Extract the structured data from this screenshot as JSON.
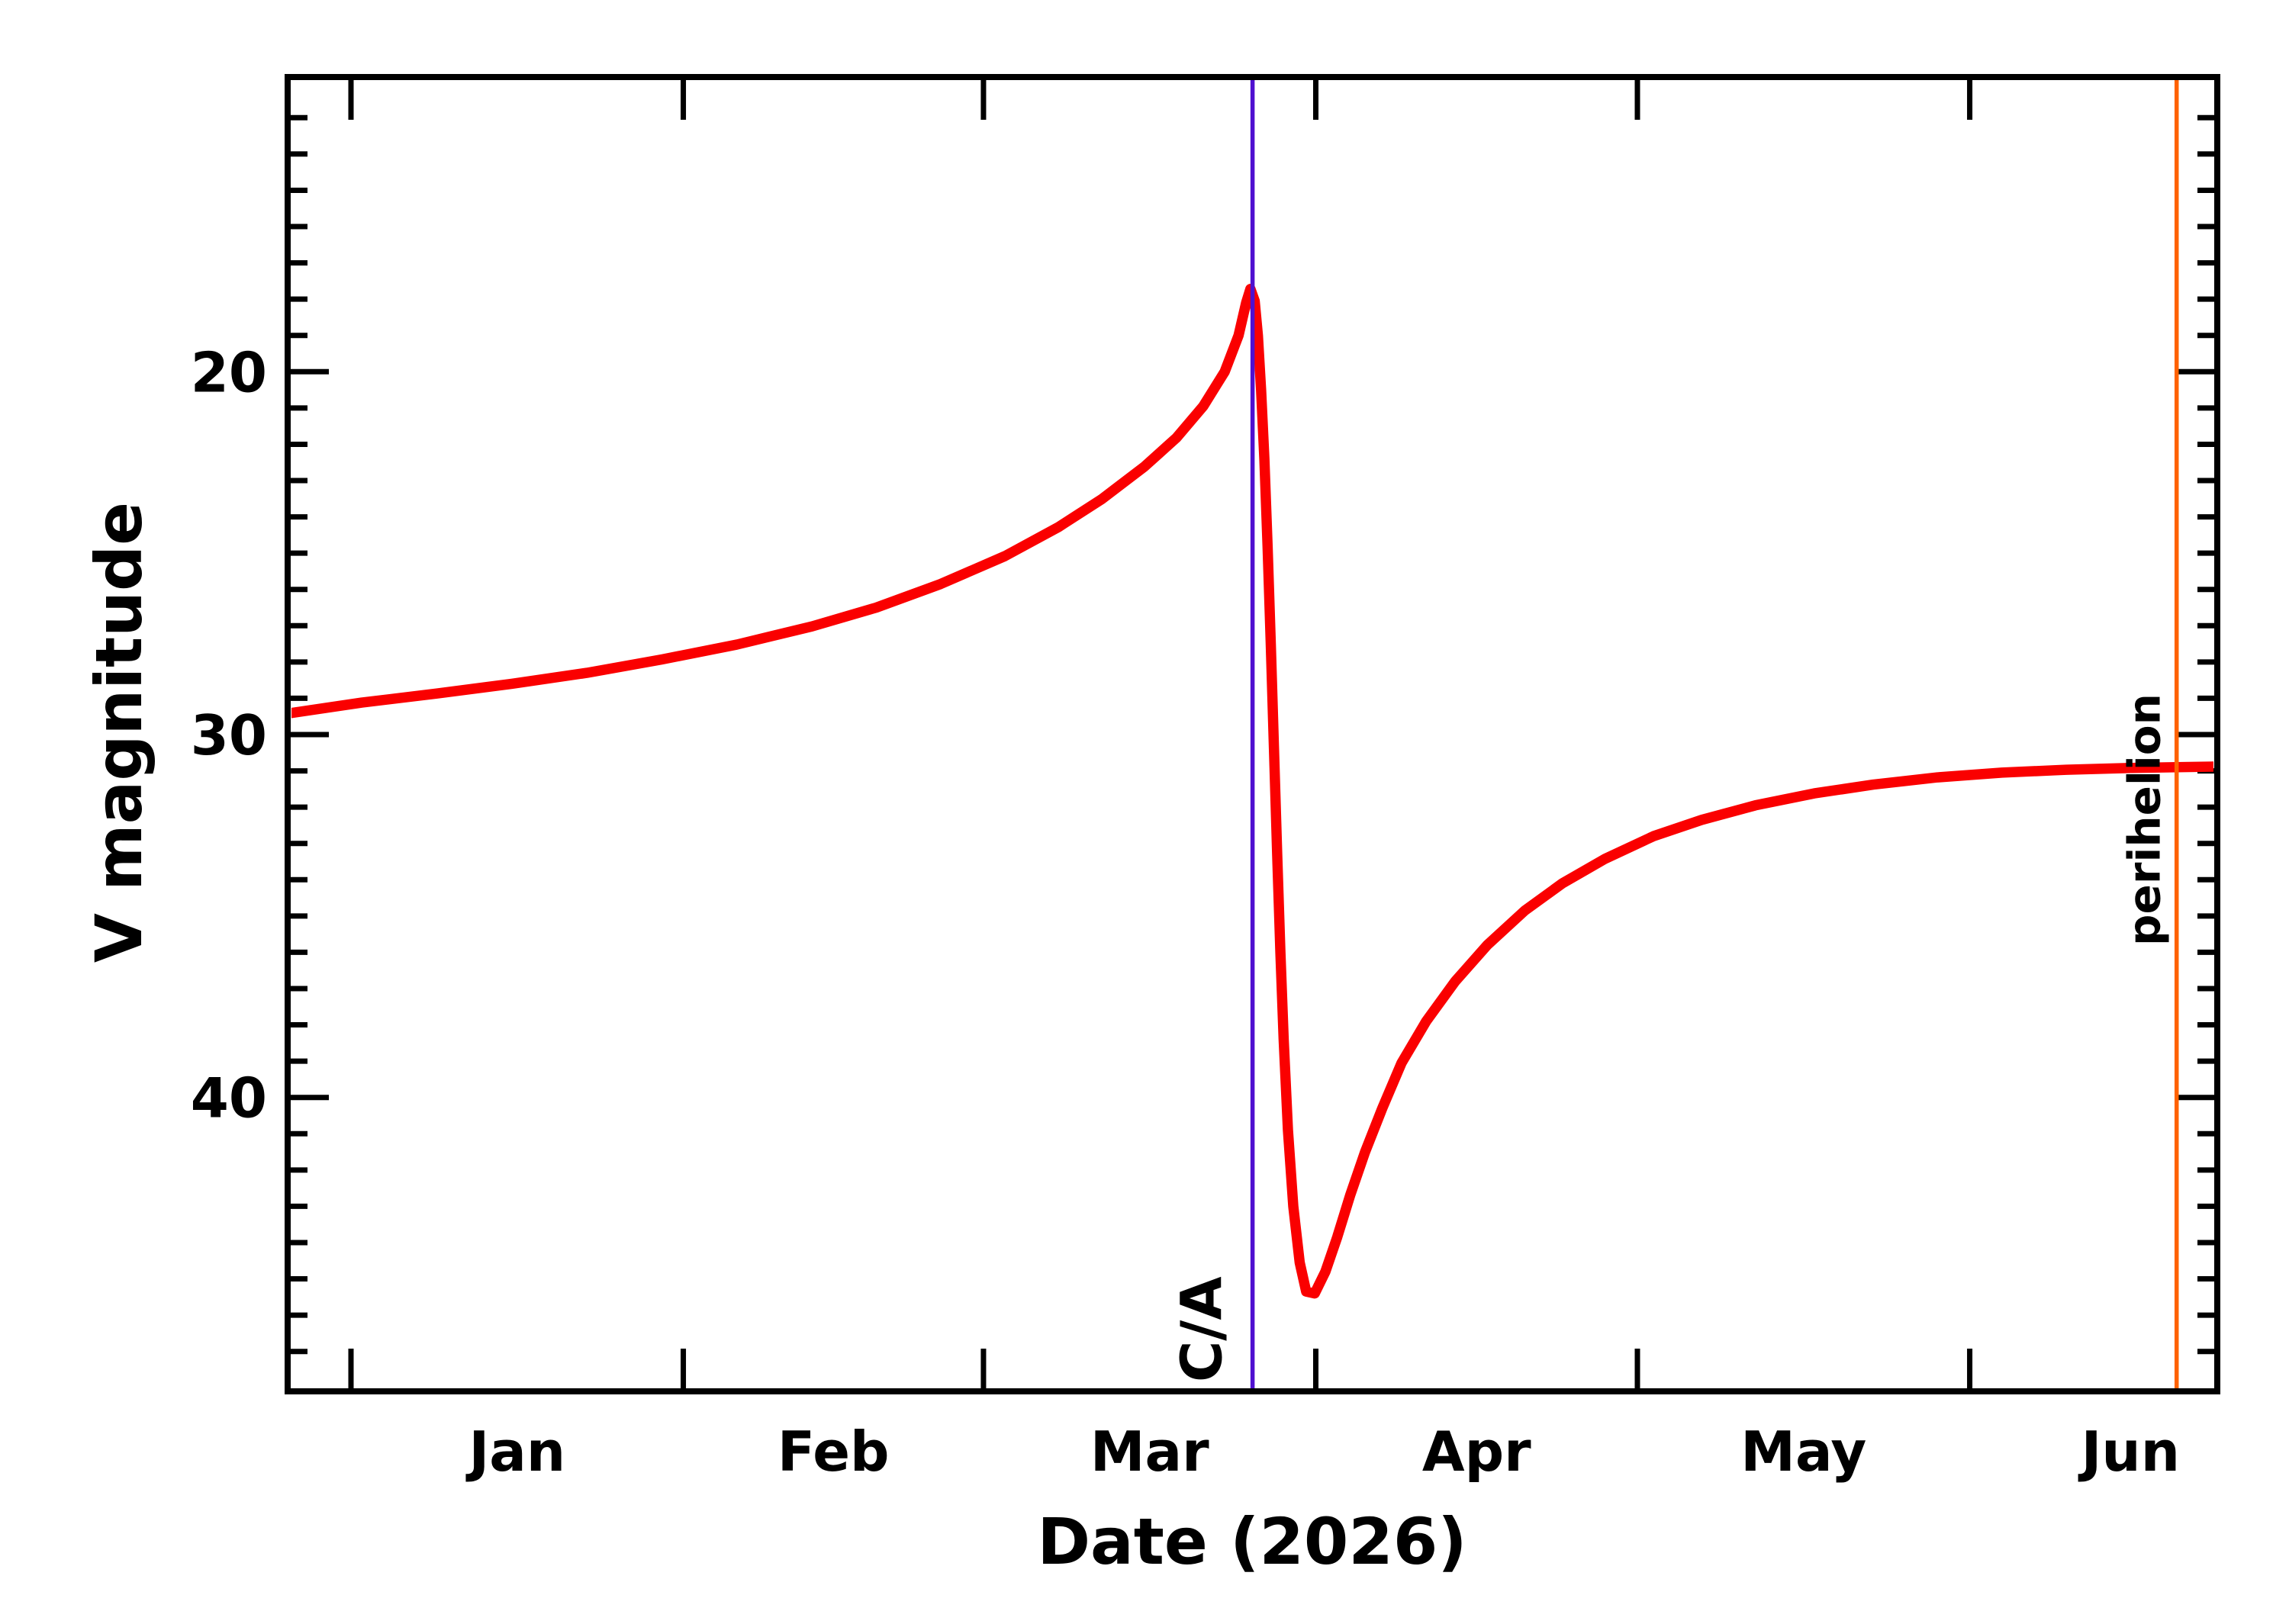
{
  "page": {
    "background": "#FFFFFF",
    "description": "Predicted brightness lightcurve plot of a small body during its 2026 Earth close approach"
  },
  "colors": {
    "curve": "#FA0000",
    "close_approach": "#4F10D0",
    "perihelion": "#FF6200",
    "axis": "#000000",
    "background": "#FFFFFF"
  },
  "chart_data": {
    "type": "line",
    "title": "",
    "xlabel": "Date (2026)",
    "ylabel": "V magnitude",
    "grid": false,
    "legend": "none",
    "x_axis": {
      "unit": "day of year 2026 (Jan 1 = 1, December 2025 negative)",
      "range_days": [
        -4.9,
        175.1
      ],
      "tick_style": "ticks at month starts on top and bottom edges, labels centered at mid-month",
      "month_ticks": [
        {
          "label": "Jan",
          "start_day": 1,
          "mid_day": 16.5
        },
        {
          "label": "Feb",
          "start_day": 32,
          "mid_day": 46
        },
        {
          "label": "Mar",
          "start_day": 60,
          "mid_day": 75.5
        },
        {
          "label": "Apr",
          "start_day": 91,
          "mid_day": 106
        },
        {
          "label": "May",
          "start_day": 121,
          "mid_day": 136.5
        },
        {
          "label": "Jun",
          "start_day": 152,
          "mid_day": 167
        }
      ]
    },
    "y_axis": {
      "inverted": true,
      "range": [
        11.7,
        48.1
      ],
      "major_ticks": [
        {
          "value": 20,
          "label": "20"
        },
        {
          "value": 30,
          "label": "30"
        },
        {
          "value": 40,
          "label": "40"
        }
      ],
      "minor_ticks": {
        "start": 13,
        "end": 47,
        "step": 1
      }
    },
    "series": [
      {
        "name": "predicted V magnitude",
        "color": "#FA0000",
        "points": [
          [
            -4.9,
            29.42
          ],
          [
            2,
            29.12
          ],
          [
            9,
            28.87
          ],
          [
            16,
            28.6
          ],
          [
            23,
            28.3
          ],
          [
            30,
            27.93
          ],
          [
            37,
            27.52
          ],
          [
            44,
            27.02
          ],
          [
            50,
            26.5
          ],
          [
            56,
            25.85
          ],
          [
            62,
            25.08
          ],
          [
            67,
            24.28
          ],
          [
            71,
            23.52
          ],
          [
            75,
            22.62
          ],
          [
            78,
            21.82
          ],
          [
            80.5,
            20.95
          ],
          [
            82.5,
            20.0
          ],
          [
            83.8,
            19.0
          ],
          [
            84.5,
            18.1
          ],
          [
            84.9,
            17.72
          ],
          [
            85.3,
            18.05
          ],
          [
            85.6,
            19.0
          ],
          [
            85.9,
            20.5
          ],
          [
            86.2,
            22.4
          ],
          [
            86.5,
            24.8
          ],
          [
            86.8,
            27.5
          ],
          [
            87.1,
            30.4
          ],
          [
            87.4,
            33.3
          ],
          [
            87.7,
            36.0
          ],
          [
            88.0,
            38.4
          ],
          [
            88.4,
            40.9
          ],
          [
            88.9,
            43.0
          ],
          [
            89.5,
            44.55
          ],
          [
            90.1,
            45.35
          ],
          [
            90.9,
            45.4
          ],
          [
            91.9,
            44.8
          ],
          [
            93.0,
            43.85
          ],
          [
            94.2,
            42.7
          ],
          [
            95.6,
            41.5
          ],
          [
            97.2,
            40.3
          ],
          [
            99.0,
            39.05
          ],
          [
            101.3,
            37.9
          ],
          [
            104.0,
            36.8
          ],
          [
            107.0,
            35.8
          ],
          [
            110.5,
            34.85
          ],
          [
            114.0,
            34.1
          ],
          [
            118.0,
            33.42
          ],
          [
            122.5,
            32.8
          ],
          [
            127.0,
            32.35
          ],
          [
            132.0,
            31.95
          ],
          [
            137.5,
            31.62
          ],
          [
            143.0,
            31.38
          ],
          [
            149.0,
            31.18
          ],
          [
            155.0,
            31.05
          ],
          [
            161.0,
            30.97
          ],
          [
            167.0,
            30.92
          ],
          [
            171.3,
            30.9
          ],
          [
            174.9,
            30.88
          ]
        ]
      }
    ],
    "annotations": [
      {
        "label": "C/A",
        "day": 85.1,
        "color": "#4F10D0",
        "style": "vertical line full height, rotated label left of line near bottom"
      },
      {
        "label": "perihelion",
        "day": 171.3,
        "color": "#FF6200",
        "style": "vertical line full height, rotated label left of line in upper half"
      }
    ]
  }
}
